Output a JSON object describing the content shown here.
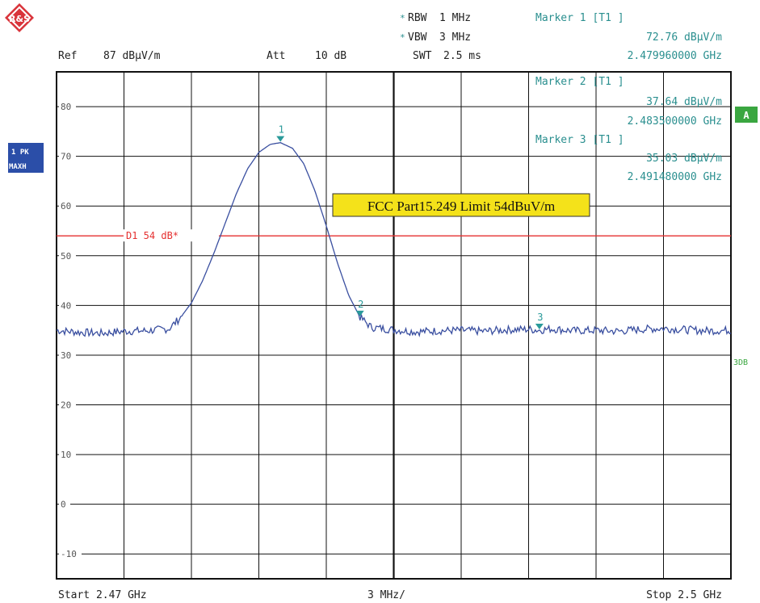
{
  "brand": {
    "logo_text": "R&S",
    "logo_color": "#d9343b"
  },
  "settings": {
    "rbw": {
      "prefix": "*",
      "label": "RBW",
      "value": "1 MHz"
    },
    "vbw": {
      "prefix": "*",
      "label": "VBW",
      "value": "3 MHz"
    },
    "swt": {
      "label": "SWT",
      "value": "2.5 ms"
    },
    "ref": {
      "label": "Ref",
      "value": "87 dBµV/m"
    },
    "att": {
      "label": "Att",
      "value": "10 dB"
    }
  },
  "markers": [
    {
      "title": "Marker 1 [T1 ]",
      "level": "72.76 dBµV/m",
      "freq": "2.479960000 GHz"
    },
    {
      "title": "Marker 2 [T1 ]",
      "level": "37.64 dBµV/m",
      "freq": "2.483500000 GHz"
    },
    {
      "title": "Marker 3 [T1 ]",
      "level": "35.03 dBµV/m",
      "freq": "2.491480000 GHz"
    }
  ],
  "side_labels": {
    "trace_badge_line1": "1 PK",
    "trace_badge_line2": "MAXH",
    "a_badge": "A",
    "right_label": "3DB"
  },
  "footer": {
    "start": "Start 2.47 GHz",
    "span": "3 MHz/",
    "stop": "Stop 2.5 GHz"
  },
  "colors": {
    "trace": "#3a4fa0",
    "marker": "#2a9a9a",
    "limit": "#e53030",
    "text": "#222222",
    "teal_text": "#2a8f8f",
    "badge_blue": "#2b4ea8",
    "badge_green": "#3aa640",
    "annotation_bg": "#f4e21a"
  },
  "chart_data": {
    "type": "line",
    "title": "",
    "xlabel": "",
    "ylabel": "",
    "xlim": [
      2.47,
      2.5
    ],
    "ylim": [
      -15,
      87
    ],
    "x_unit": "GHz",
    "y_unit": "dBµV/m",
    "y_ticks": [
      80,
      70,
      60,
      50,
      40,
      30,
      20,
      10,
      0,
      -10
    ],
    "x_divisions": 10,
    "grid": true,
    "series": [
      {
        "x": [
          2.47,
          2.471,
          2.472,
          2.473,
          2.474,
          2.475,
          2.4755,
          2.476,
          2.4765,
          2.477,
          2.4775,
          2.478,
          2.4785,
          2.479,
          2.4795,
          2.47996,
          2.4805,
          2.481,
          2.4815,
          2.482,
          2.4825,
          2.483,
          2.4835,
          2.484,
          2.485,
          2.486,
          2.487,
          2.488,
          2.489,
          2.49,
          2.491,
          2.49148,
          2.492,
          2.493,
          2.494,
          2.495,
          2.496,
          2.497,
          2.498,
          2.499,
          2.5
        ],
        "values": [
          35.0,
          34.6,
          34.4,
          34.8,
          34.9,
          35.3,
          37.5,
          40.5,
          45.0,
          50.5,
          56.5,
          62.5,
          67.5,
          70.8,
          72.4,
          72.76,
          71.6,
          68.5,
          63.0,
          56.0,
          48.5,
          42.0,
          37.64,
          35.6,
          35.1,
          34.7,
          34.9,
          35.0,
          34.8,
          35.1,
          35.2,
          35.03,
          35.3,
          34.9,
          35.0,
          34.8,
          35.2,
          35.4,
          35.1,
          34.9,
          35.0
        ]
      }
    ],
    "limit_line": {
      "label": "D1 54 dB*",
      "value": 54
    },
    "markers": [
      {
        "label": "1",
        "x": 2.47996,
        "y": 72.76
      },
      {
        "label": "2",
        "x": 2.4835,
        "y": 37.64
      },
      {
        "label": "3",
        "x": 2.49148,
        "y": 35.03
      }
    ],
    "annotation": "FCC Part15.249 Limit 54dBuV/m"
  }
}
